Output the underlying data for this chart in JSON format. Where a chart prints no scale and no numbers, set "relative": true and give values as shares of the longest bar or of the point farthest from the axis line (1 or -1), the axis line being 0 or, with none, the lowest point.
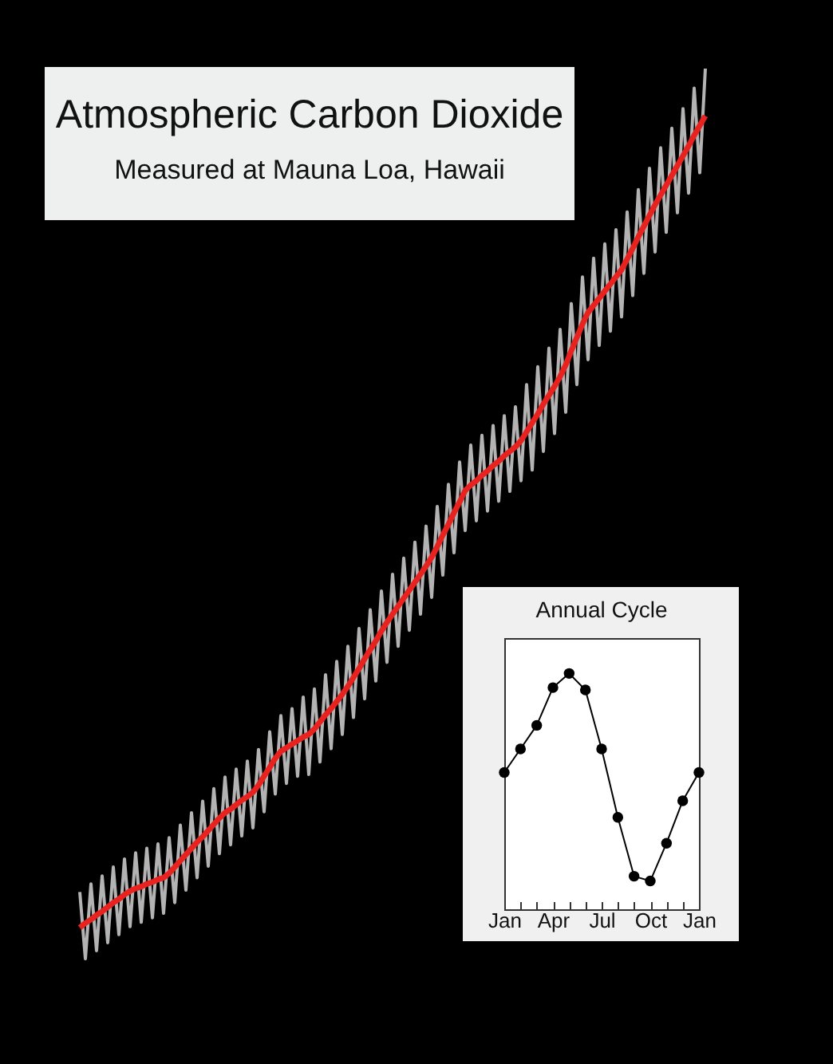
{
  "chart_data": [
    {
      "type": "line",
      "title": "Atmospheric Carbon Dioxide",
      "subtitle": "Measured at Mauna Loa, Hawaii",
      "relative": true,
      "tick_labels": false,
      "categories": [
        null,
        null,
        null,
        null,
        null,
        null,
        null,
        null,
        null,
        null,
        null,
        null,
        null,
        null,
        null,
        null,
        null,
        null,
        null,
        null,
        null,
        null,
        null,
        null,
        null,
        null,
        null,
        null,
        null,
        null,
        null,
        null,
        null,
        null,
        null,
        null,
        null,
        null,
        null,
        null,
        null,
        null,
        null,
        null,
        null,
        null,
        null,
        null,
        null,
        null,
        null,
        null,
        null,
        null,
        null,
        null,
        null,
        null,
        null,
        null,
        null,
        null,
        null,
        null,
        null,
        null,
        null,
        null,
        null,
        null,
        null,
        null,
        null,
        null,
        null,
        null,
        null,
        null,
        null,
        null,
        null,
        null,
        null,
        null,
        null,
        null,
        null,
        null,
        null,
        null,
        null,
        null,
        null,
        null,
        null,
        null,
        null,
        null,
        null,
        null,
        null,
        null,
        null,
        null,
        null,
        null,
        null,
        null,
        null,
        null,
        null,
        null,
        null
      ],
      "series": [
        {
          "color": "#b3b3b3",
          "values": [
            0.075,
            0.0,
            0.084,
            0.009,
            0.093,
            0.018,
            0.103,
            0.027,
            0.112,
            0.036,
            0.119,
            0.041,
            0.124,
            0.046,
            0.129,
            0.051,
            0.136,
            0.063,
            0.15,
            0.077,
            0.164,
            0.091,
            0.177,
            0.104,
            0.191,
            0.118,
            0.204,
            0.128,
            0.213,
            0.138,
            0.222,
            0.147,
            0.235,
            0.165,
            0.255,
            0.185,
            0.273,
            0.197,
            0.281,
            0.205,
            0.294,
            0.207,
            0.303,
            0.221,
            0.319,
            0.236,
            0.334,
            0.252,
            0.351,
            0.271,
            0.371,
            0.292,
            0.392,
            0.312,
            0.413,
            0.333,
            0.432,
            0.351,
            0.45,
            0.369,
            0.468,
            0.387,
            0.486,
            0.406,
            0.508,
            0.431,
            0.533,
            0.456,
            0.558,
            0.481,
            0.577,
            0.492,
            0.588,
            0.503,
            0.599,
            0.514,
            0.61,
            0.525,
            0.62,
            0.537,
            0.645,
            0.549,
            0.665,
            0.57,
            0.686,
            0.59,
            0.707,
            0.614,
            0.736,
            0.645,
            0.766,
            0.673,
            0.787,
            0.689,
            0.803,
            0.705,
            0.819,
            0.721,
            0.839,
            0.745,
            0.864,
            0.77,
            0.888,
            0.794,
            0.911,
            0.816,
            0.933,
            0.838,
            0.955,
            0.86,
            0.978,
            0.883,
            1.0
          ]
        },
        {
          "color": "#e8231f",
          "values": [
            0.035,
            0.04,
            0.044,
            0.049,
            0.053,
            0.058,
            0.063,
            0.067,
            0.072,
            0.076,
            0.079,
            0.081,
            0.084,
            0.086,
            0.089,
            0.091,
            0.096,
            0.103,
            0.11,
            0.117,
            0.124,
            0.131,
            0.137,
            0.144,
            0.151,
            0.158,
            0.164,
            0.168,
            0.173,
            0.178,
            0.182,
            0.187,
            0.195,
            0.205,
            0.215,
            0.225,
            0.233,
            0.237,
            0.241,
            0.245,
            0.249,
            0.252,
            0.258,
            0.266,
            0.274,
            0.281,
            0.289,
            0.297,
            0.306,
            0.316,
            0.326,
            0.337,
            0.347,
            0.357,
            0.368,
            0.378,
            0.387,
            0.396,
            0.405,
            0.414,
            0.423,
            0.432,
            0.441,
            0.451,
            0.463,
            0.476,
            0.488,
            0.501,
            0.513,
            0.526,
            0.532,
            0.537,
            0.543,
            0.548,
            0.554,
            0.559,
            0.565,
            0.57,
            0.575,
            0.582,
            0.592,
            0.602,
            0.612,
            0.623,
            0.633,
            0.643,
            0.654,
            0.667,
            0.683,
            0.698,
            0.713,
            0.726,
            0.734,
            0.742,
            0.75,
            0.758,
            0.766,
            0.774,
            0.786,
            0.798,
            0.811,
            0.823,
            0.835,
            0.847,
            0.858,
            0.869,
            0.88,
            0.891,
            0.902,
            0.913,
            0.925,
            0.936,
            0.947
          ]
        }
      ]
    },
    {
      "type": "line",
      "title": "Annual Cycle",
      "relative": true,
      "tick_labels": "x",
      "marker": "circle",
      "categories": [
        "Jan",
        null,
        null,
        "Apr",
        null,
        null,
        "Jul",
        null,
        null,
        "Oct",
        null,
        null,
        "Jan"
      ],
      "series": [
        {
          "color": "#000000",
          "values": [
            0.58,
            0.68,
            0.78,
            0.94,
            1.0,
            0.93,
            0.68,
            0.39,
            0.14,
            0.12,
            0.28,
            0.46,
            0.58
          ]
        }
      ]
    }
  ]
}
